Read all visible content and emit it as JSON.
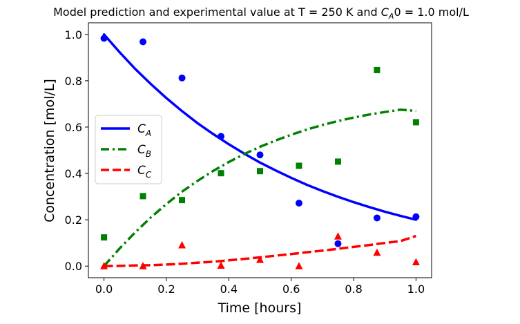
{
  "chart_data": {
    "type": "line",
    "title": "Model prediction and experimental value at T = 250 K and $C_A$0 = 1.0 mol/L",
    "title_parts": {
      "prefix": "Model prediction and experimental value at T = 250 K and ",
      "var_main": "C",
      "var_sub": "A",
      "suffix": "0 = 1.0 mol/L"
    },
    "xlabel": "Time [hours]",
    "ylabel": "Concentration [mol/L]",
    "xlim": [
      -0.05,
      1.05
    ],
    "ylim": [
      -0.05,
      1.05
    ],
    "xticks": [
      0.0,
      0.2,
      0.4,
      0.6,
      0.8,
      1.0
    ],
    "xtick_labels": [
      "0.0",
      "0.2",
      "0.4",
      "0.6",
      "0.8",
      "1.0"
    ],
    "yticks": [
      0.0,
      0.2,
      0.4,
      0.6,
      0.8,
      1.0
    ],
    "ytick_labels": [
      "0.0",
      "0.2",
      "0.4",
      "0.6",
      "0.8",
      "1.0"
    ],
    "grid": false,
    "legend_position": "center-left",
    "model_series": [
      {
        "name": "C_A",
        "label_main": "C",
        "label_sub": "A",
        "color": "#0000ff",
        "style": "solid",
        "x": [
          0.0,
          0.05,
          0.1,
          0.15,
          0.2,
          0.25,
          0.3,
          0.35,
          0.4,
          0.45,
          0.5,
          0.55,
          0.6,
          0.65,
          0.7,
          0.75,
          0.8,
          0.85,
          0.9,
          0.95,
          1.0
        ],
        "y": [
          1.0,
          0.923,
          0.851,
          0.786,
          0.725,
          0.669,
          0.617,
          0.57,
          0.526,
          0.485,
          0.447,
          0.413,
          0.381,
          0.351,
          0.324,
          0.299,
          0.276,
          0.255,
          0.235,
          0.217,
          0.2
        ]
      },
      {
        "name": "C_B",
        "label_main": "C",
        "label_sub": "B",
        "color": "#008000",
        "style": "dashdot",
        "x": [
          0.0,
          0.05,
          0.1,
          0.15,
          0.2,
          0.25,
          0.3,
          0.35,
          0.4,
          0.45,
          0.5,
          0.55,
          0.6,
          0.65,
          0.7,
          0.75,
          0.8,
          0.85,
          0.9,
          0.95,
          1.0
        ],
        "y": [
          0.0,
          0.076,
          0.146,
          0.21,
          0.268,
          0.321,
          0.368,
          0.411,
          0.449,
          0.484,
          0.515,
          0.542,
          0.567,
          0.589,
          0.609,
          0.626,
          0.641,
          0.654,
          0.665,
          0.675,
          0.67
        ]
      },
      {
        "name": "C_C",
        "label_main": "C",
        "label_sub": "C",
        "color": "#ff0000",
        "style": "dashed",
        "x": [
          0.0,
          0.05,
          0.1,
          0.15,
          0.2,
          0.25,
          0.3,
          0.35,
          0.4,
          0.45,
          0.5,
          0.55,
          0.6,
          0.65,
          0.7,
          0.75,
          0.8,
          0.85,
          0.9,
          0.95,
          1.0
        ],
        "y": [
          0.0,
          0.001,
          0.003,
          0.004,
          0.007,
          0.01,
          0.015,
          0.019,
          0.025,
          0.031,
          0.038,
          0.045,
          0.052,
          0.06,
          0.067,
          0.075,
          0.083,
          0.091,
          0.1,
          0.108,
          0.13
        ]
      }
    ],
    "experimental_series": [
      {
        "color": "#0000ff",
        "marker": "circle",
        "x": [
          0.0,
          0.125,
          0.25,
          0.375,
          0.5,
          0.625,
          0.75,
          0.875,
          1.0
        ],
        "y": [
          0.983,
          0.968,
          0.812,
          0.56,
          0.48,
          0.272,
          0.097,
          0.208,
          0.213
        ]
      },
      {
        "color": "#008000",
        "marker": "square",
        "x": [
          0.0,
          0.125,
          0.25,
          0.375,
          0.5,
          0.625,
          0.75,
          0.875,
          1.0
        ],
        "y": [
          0.124,
          0.302,
          0.285,
          0.401,
          0.41,
          0.433,
          0.451,
          0.846,
          0.621
        ]
      },
      {
        "color": "#ff0000",
        "marker": "triangle",
        "x": [
          0.0,
          0.125,
          0.25,
          0.375,
          0.5,
          0.625,
          0.75,
          0.875,
          1.0
        ],
        "y": [
          0.0,
          0.0,
          0.09,
          0.002,
          0.027,
          0.0,
          0.128,
          0.058,
          0.017
        ]
      }
    ]
  }
}
